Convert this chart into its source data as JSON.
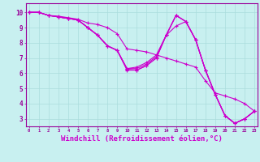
{
  "bg_color": "#c8f0f0",
  "line_color": "#cc00cc",
  "grid_color": "#aadddd",
  "axis_color": "#990099",
  "tick_color": "#990099",
  "xlabel": "Windchill (Refroidissement éolien,°C)",
  "xlabel_fontsize": 6.5,
  "xtick_labels": [
    "0",
    "1",
    "2",
    "3",
    "4",
    "5",
    "6",
    "7",
    "8",
    "9",
    "10",
    "11",
    "12",
    "13",
    "14",
    "15",
    "16",
    "17",
    "18",
    "19",
    "20",
    "21",
    "22",
    "23"
  ],
  "ytick_labels": [
    "3",
    "4",
    "5",
    "6",
    "7",
    "8",
    "9",
    "10"
  ],
  "ylim": [
    2.5,
    10.6
  ],
  "xlim": [
    -0.3,
    23.3
  ],
  "lines": [
    [
      10.0,
      10.0,
      9.8,
      9.75,
      9.65,
      9.55,
      9.3,
      9.2,
      9.0,
      8.6,
      7.6,
      7.5,
      7.4,
      7.2,
      7.0,
      6.8,
      6.6,
      6.4,
      5.5,
      4.7,
      4.5,
      4.3,
      4.0,
      3.5
    ],
    [
      10.0,
      10.0,
      9.8,
      9.7,
      9.6,
      9.5,
      9.0,
      8.5,
      7.8,
      7.5,
      6.25,
      6.2,
      6.5,
      7.0,
      8.5,
      9.8,
      9.4,
      8.2,
      6.2,
      4.6,
      3.2,
      2.7,
      3.0,
      3.5
    ],
    [
      10.0,
      10.0,
      9.8,
      9.7,
      9.6,
      9.5,
      9.0,
      8.5,
      7.8,
      7.5,
      6.3,
      6.3,
      6.6,
      7.1,
      8.5,
      9.8,
      9.4,
      8.2,
      6.2,
      4.6,
      3.2,
      2.7,
      3.0,
      3.5
    ],
    [
      10.0,
      10.0,
      9.8,
      9.7,
      9.6,
      9.5,
      9.0,
      8.5,
      7.8,
      7.5,
      6.3,
      6.4,
      6.7,
      7.2,
      8.5,
      9.8,
      9.4,
      8.2,
      6.2,
      4.6,
      3.2,
      2.7,
      3.0,
      3.5
    ],
    [
      10.0,
      10.0,
      9.8,
      9.7,
      9.6,
      9.5,
      9.0,
      8.5,
      7.8,
      7.5,
      6.2,
      6.2,
      6.5,
      7.0,
      8.5,
      9.1,
      9.4,
      8.2,
      6.2,
      4.6,
      3.2,
      2.7,
      3.0,
      3.5
    ]
  ]
}
